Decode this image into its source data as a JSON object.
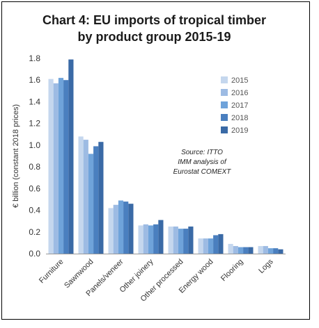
{
  "chart_data": {
    "type": "bar",
    "title_line1": "Chart 4: EU imports of tropical timber",
    "title_line2": "by product group 2015-19",
    "ylabel": "€ billion (constant 2018 prices)",
    "xlabel": "",
    "ylim": [
      0,
      1.8
    ],
    "yticks": [
      "0.0",
      "0.2",
      "0.4",
      "0.6",
      "0.8",
      "1.0",
      "1.2",
      "1.4",
      "1.6",
      "1.8"
    ],
    "grid": false,
    "legend_position": "right",
    "categories": [
      "Furniture",
      "Sawnwood",
      "Panels/veneer",
      "Other joinery",
      "Other processed",
      "Energy wood",
      "Flooring",
      "Logs"
    ],
    "series": [
      {
        "name": "2015",
        "color": "#c5d7ee",
        "values": [
          1.61,
          1.08,
          0.42,
          0.26,
          0.25,
          0.14,
          0.09,
          0.07
        ]
      },
      {
        "name": "2016",
        "color": "#9dbbe3",
        "values": [
          1.57,
          1.05,
          0.45,
          0.27,
          0.25,
          0.14,
          0.07,
          0.07
        ]
      },
      {
        "name": "2017",
        "color": "#6fa3da",
        "values": [
          1.62,
          0.92,
          0.49,
          0.26,
          0.23,
          0.14,
          0.06,
          0.05
        ]
      },
      {
        "name": "2018",
        "color": "#4a7fbf",
        "values": [
          1.6,
          0.99,
          0.48,
          0.27,
          0.23,
          0.17,
          0.06,
          0.05
        ]
      },
      {
        "name": "2019",
        "color": "#3a6aa6",
        "values": [
          1.79,
          1.03,
          0.46,
          0.31,
          0.25,
          0.18,
          0.06,
          0.04
        ]
      }
    ],
    "source_note": [
      "Source: ITTO",
      "IMM analysis of",
      "Eurostat COMEXT"
    ]
  }
}
